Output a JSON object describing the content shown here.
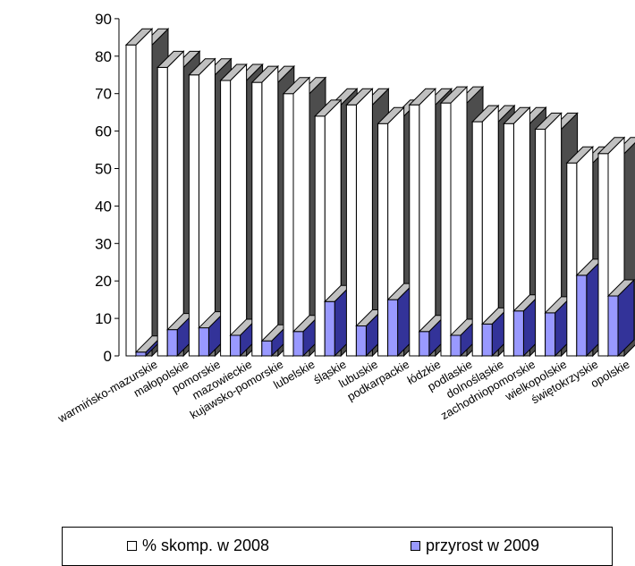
{
  "colors": {
    "series1_front": "#ffffff",
    "series2_front": "#9999ff",
    "series2_side": "#333399",
    "back_front": "#808080",
    "back_side": "#4d4d4d",
    "top": "#c0c0c0"
  },
  "chart_data": {
    "type": "bar",
    "style": "3d-clustered",
    "ylim": [
      0,
      90
    ],
    "yticks": [
      0,
      10,
      20,
      30,
      40,
      50,
      60,
      70,
      80,
      90
    ],
    "categories": [
      "warmińsko-mazurskie",
      "małopolskie",
      "pomorskie",
      "mazowieckie",
      "kujawsko-pomorskie",
      "lubelskie",
      "śląskie",
      "lubuskie",
      "podkarpackie",
      "łódzkie",
      "podlaskie",
      "dolnośląskie",
      "zachodniopomorskie",
      "wielkopolskie",
      "świętokrzyskie",
      "opolskie"
    ],
    "series": [
      {
        "name": "% skomp. w 2008",
        "values": [
          83,
          77,
          75,
          73.5,
          73,
          70,
          64,
          67,
          62,
          67,
          67.5,
          62.5,
          62,
          60.5,
          51.5,
          54
        ]
      },
      {
        "name": "przyrost w 2009",
        "values": [
          1,
          7,
          7.5,
          5.5,
          4,
          6.5,
          14.5,
          8,
          15,
          6.5,
          5.5,
          8.5,
          12,
          11.5,
          21.5,
          16
        ]
      }
    ],
    "background_series_values": [
      83,
      77,
      75,
      73.5,
      73,
      70,
      67,
      67,
      64,
      67,
      67.5,
      62.5,
      62,
      60.5,
      51.5,
      54
    ],
    "grid": false,
    "legend_position": "bottom"
  }
}
